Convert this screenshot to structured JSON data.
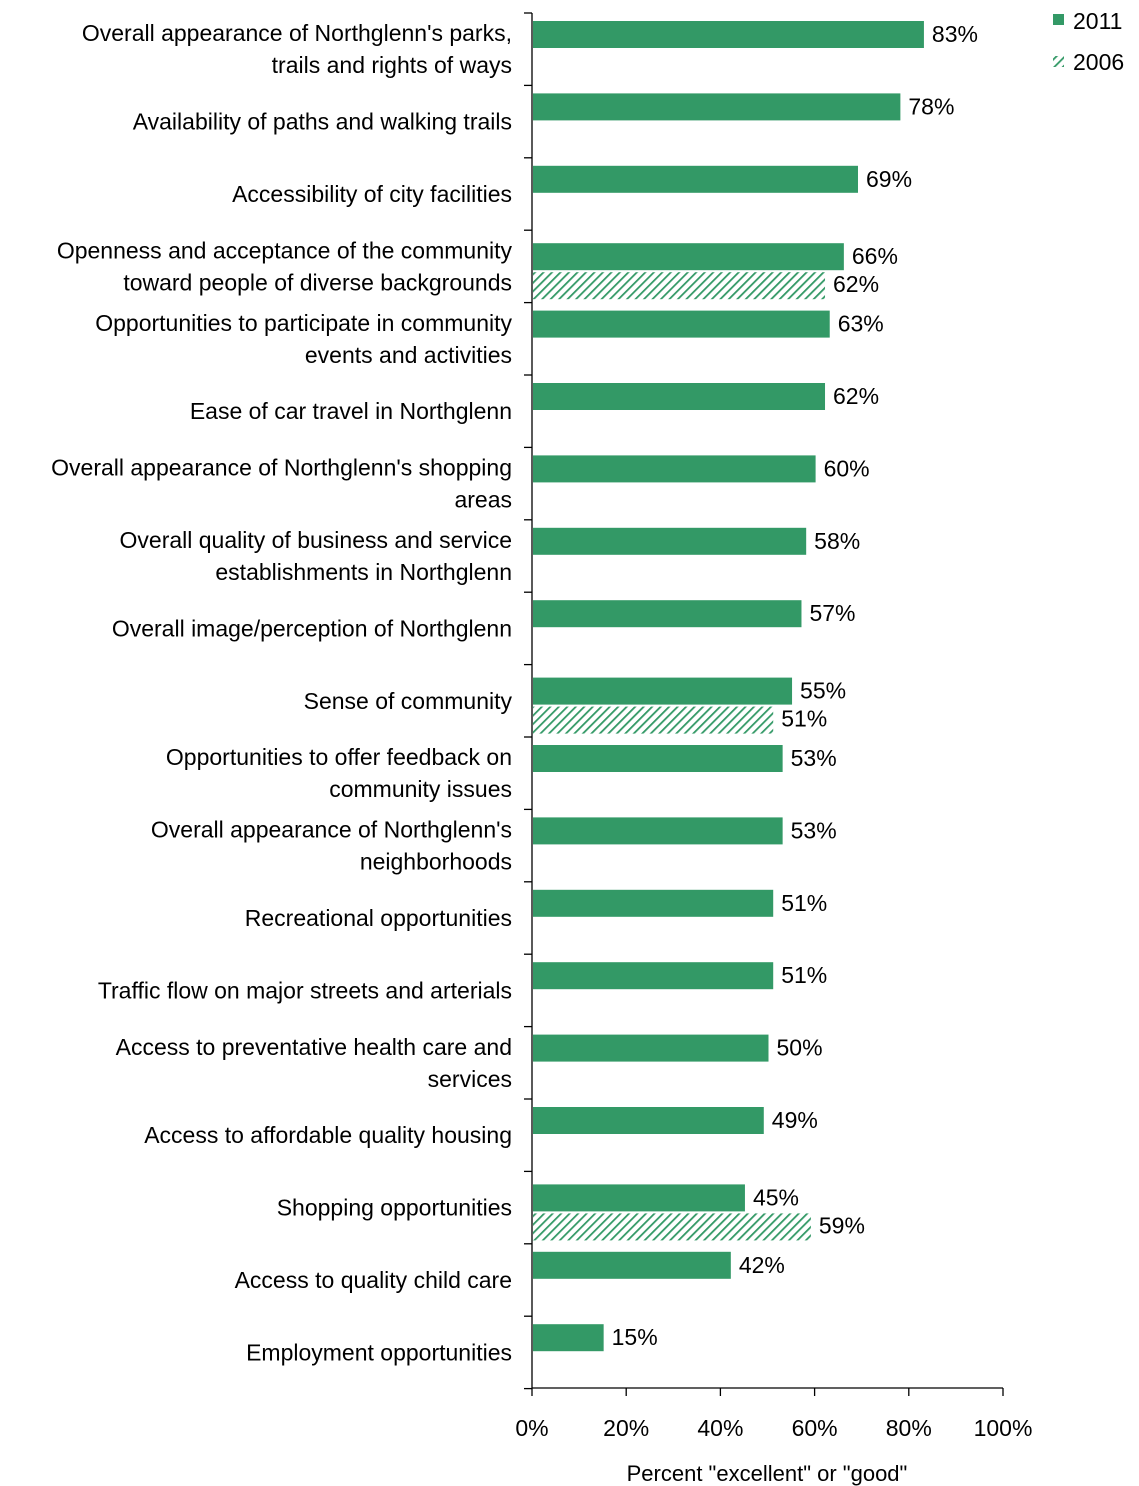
{
  "chart_data": {
    "type": "bar",
    "orientation": "horizontal",
    "title": "",
    "xlabel": "Percent \"excellent\" or \"good\"",
    "ylabel": "",
    "xlim": [
      0,
      100
    ],
    "x_ticks": [
      "0%",
      "20%",
      "40%",
      "60%",
      "80%",
      "100%"
    ],
    "grid": false,
    "legend_position": "top-right",
    "categories": [
      "Overall appearance of Northglenn's parks, trails and rights of ways",
      "Availability of paths and walking trails",
      "Accessibility of city facilities",
      "Openness and acceptance of the community toward people of diverse backgrounds",
      "Opportunities to participate in community events and activities",
      "Ease of car travel in Northglenn",
      "Overall appearance of Northglenn's shopping areas",
      "Overall quality of business and service establishments in Northglenn",
      "Overall image/perception of Northglenn",
      "Sense of community",
      "Opportunities to offer feedback on community issues",
      "Overall appearance of Northglenn's neighborhoods",
      "Recreational opportunities",
      "Traffic flow on major streets and arterials",
      "Access to preventative health care and services",
      "Access to affordable quality housing",
      "Shopping opportunities",
      "Access to quality child care",
      "Employment opportunities"
    ],
    "category_lines": [
      [
        "Overall appearance of Northglenn's parks,",
        "trails and rights of ways"
      ],
      [
        "Availability of paths and walking trails"
      ],
      [
        "Accessibility of city facilities"
      ],
      [
        "Openness and acceptance of the community",
        "toward people of diverse backgrounds"
      ],
      [
        "Opportunities to participate in community",
        "events and activities"
      ],
      [
        "Ease of car travel in Northglenn"
      ],
      [
        "Overall appearance of Northglenn's shopping",
        "areas"
      ],
      [
        "Overall quality of business and service",
        "establishments in Northglenn"
      ],
      [
        "Overall image/perception of Northglenn"
      ],
      [
        "Sense of community"
      ],
      [
        "Opportunities to offer feedback on",
        "community issues"
      ],
      [
        "Overall appearance of Northglenn's",
        "neighborhoods"
      ],
      [
        "Recreational opportunities"
      ],
      [
        "Traffic flow on major streets and arterials"
      ],
      [
        "Access to preventative health care and",
        "services"
      ],
      [
        "Access to affordable quality housing"
      ],
      [
        "Shopping opportunities"
      ],
      [
        "Access to quality child care"
      ],
      [
        "Employment opportunities"
      ]
    ],
    "series": [
      {
        "name": "2011",
        "color": "#339966",
        "pattern": "solid",
        "values": [
          83,
          78,
          69,
          66,
          63,
          62,
          60,
          58,
          57,
          55,
          53,
          53,
          51,
          51,
          50,
          49,
          45,
          42,
          15
        ],
        "labels": [
          "83%",
          "78%",
          "69%",
          "66%",
          "63%",
          "62%",
          "60%",
          "58%",
          "57%",
          "55%",
          "53%",
          "53%",
          "51%",
          "51%",
          "50%",
          "49%",
          "45%",
          "42%",
          "15%"
        ]
      },
      {
        "name": "2006",
        "color": "#339966",
        "pattern": "diagonal-hatch",
        "values": [
          null,
          null,
          null,
          62,
          null,
          null,
          null,
          null,
          null,
          51,
          null,
          null,
          null,
          null,
          null,
          null,
          59,
          null,
          null
        ],
        "labels": [
          null,
          null,
          null,
          "62%",
          null,
          null,
          null,
          null,
          null,
          "51%",
          null,
          null,
          null,
          null,
          null,
          null,
          "59%",
          null,
          null
        ]
      }
    ]
  }
}
